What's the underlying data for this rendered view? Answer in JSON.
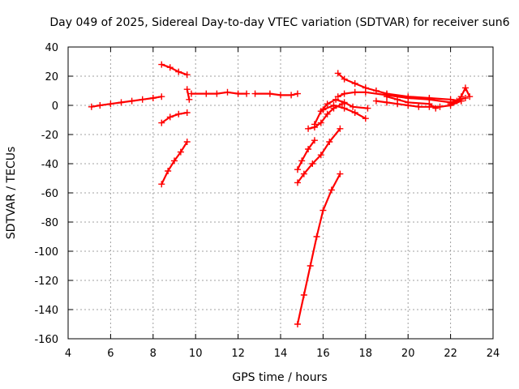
{
  "chart_data": {
    "type": "scatter",
    "title": "Day 049 of 2025, Sidereal Day-to-day VTEC variation (SDTVAR) for receiver sun6",
    "xlabel": "GPS time / hours",
    "ylabel": "SDTVAR / TECUs",
    "xlim": [
      4,
      24
    ],
    "ylim": [
      -160,
      40
    ],
    "xticks": [
      "4",
      "6",
      "8",
      "10",
      "12",
      "14",
      "16",
      "18",
      "20",
      "22",
      "24"
    ],
    "yticks": [
      "40",
      "20",
      "0",
      "-20",
      "-40",
      "-60",
      "-80",
      "-100",
      "-120",
      "-140",
      "-160"
    ],
    "grid": true,
    "marker": "plus",
    "color": "#ff0000",
    "series": [
      {
        "x": [
          5.1,
          5.5,
          6.0,
          6.5,
          7.0,
          7.5,
          8.0,
          8.4
        ],
        "y": [
          -1,
          0,
          1,
          2,
          3,
          4,
          5,
          6
        ]
      },
      {
        "x": [
          8.4,
          8.8,
          9.2,
          9.6
        ],
        "y": [
          28,
          26,
          23,
          21
        ]
      },
      {
        "x": [
          8.4,
          8.8,
          9.2,
          9.6
        ],
        "y": [
          -12,
          -8,
          -6,
          -5
        ]
      },
      {
        "x": [
          8.4,
          8.7,
          9.0,
          9.3,
          9.6
        ],
        "y": [
          -54,
          -45,
          -38,
          -32,
          -25
        ]
      },
      {
        "x": [
          9.6,
          9.7
        ],
        "y": [
          11,
          4
        ]
      },
      {
        "x": [
          9.8,
          10.5,
          11.0,
          11.5,
          12.0,
          12.4
        ],
        "y": [
          8,
          8,
          8,
          9,
          8,
          8
        ]
      },
      {
        "x": [
          12.8,
          13.5,
          14.0,
          14.5,
          14.8
        ],
        "y": [
          8,
          8,
          7,
          7,
          8
        ]
      },
      {
        "x": [
          14.8,
          15.1,
          15.4,
          15.7,
          16.0,
          16.4,
          16.8
        ],
        "y": [
          -150,
          -130,
          -110,
          -90,
          -72,
          -58,
          -47
        ]
      },
      {
        "x": [
          14.8,
          15.1,
          15.5,
          15.9,
          16.3,
          16.8
        ],
        "y": [
          -53,
          -47,
          -40,
          -34,
          -25,
          -16
        ]
      },
      {
        "x": [
          14.8,
          15.0,
          15.3,
          15.6
        ],
        "y": [
          -44,
          -38,
          -30,
          -24
        ]
      },
      {
        "x": [
          15.3,
          15.6,
          15.9,
          16.2,
          16.5,
          16.9
        ],
        "y": [
          -16,
          -15,
          -12,
          -6,
          -2,
          1
        ]
      },
      {
        "x": [
          15.6,
          15.9,
          16.2,
          16.6,
          17.0,
          17.4,
          18.1
        ],
        "y": [
          -13,
          -4,
          1,
          4,
          2,
          -1,
          -2
        ]
      },
      {
        "x": [
          16.0,
          16.5,
          17.0,
          17.5,
          18.0
        ],
        "y": [
          -3,
          0,
          -2,
          -5,
          -9
        ]
      },
      {
        "x": [
          16.7,
          17.0,
          17.5,
          18.0,
          18.5,
          19.0,
          20.0,
          21.0,
          22.0,
          22.5
        ],
        "y": [
          22,
          18,
          15,
          12,
          10,
          8,
          6,
          5,
          4,
          3
        ]
      },
      {
        "x": [
          16.7,
          17.0,
          17.5,
          18.0,
          19.0,
          20.0,
          21.0,
          22.0,
          22.7
        ],
        "y": [
          6,
          8,
          9,
          9,
          7,
          5,
          4,
          2,
          5
        ]
      },
      {
        "x": [
          18.5,
          19.0,
          19.5,
          20.0,
          20.5,
          21.0,
          21.5,
          22.0,
          22.5
        ],
        "y": [
          3,
          2,
          1,
          0,
          -1,
          -1,
          -1,
          0,
          3
        ]
      },
      {
        "x": [
          19.0,
          19.5,
          20.0,
          21.0,
          21.3
        ],
        "y": [
          6,
          4,
          2,
          1,
          -2
        ]
      },
      {
        "x": [
          22.0,
          22.3,
          22.5,
          22.7,
          22.9
        ],
        "y": [
          1,
          3,
          6,
          12,
          6
        ]
      }
    ]
  }
}
